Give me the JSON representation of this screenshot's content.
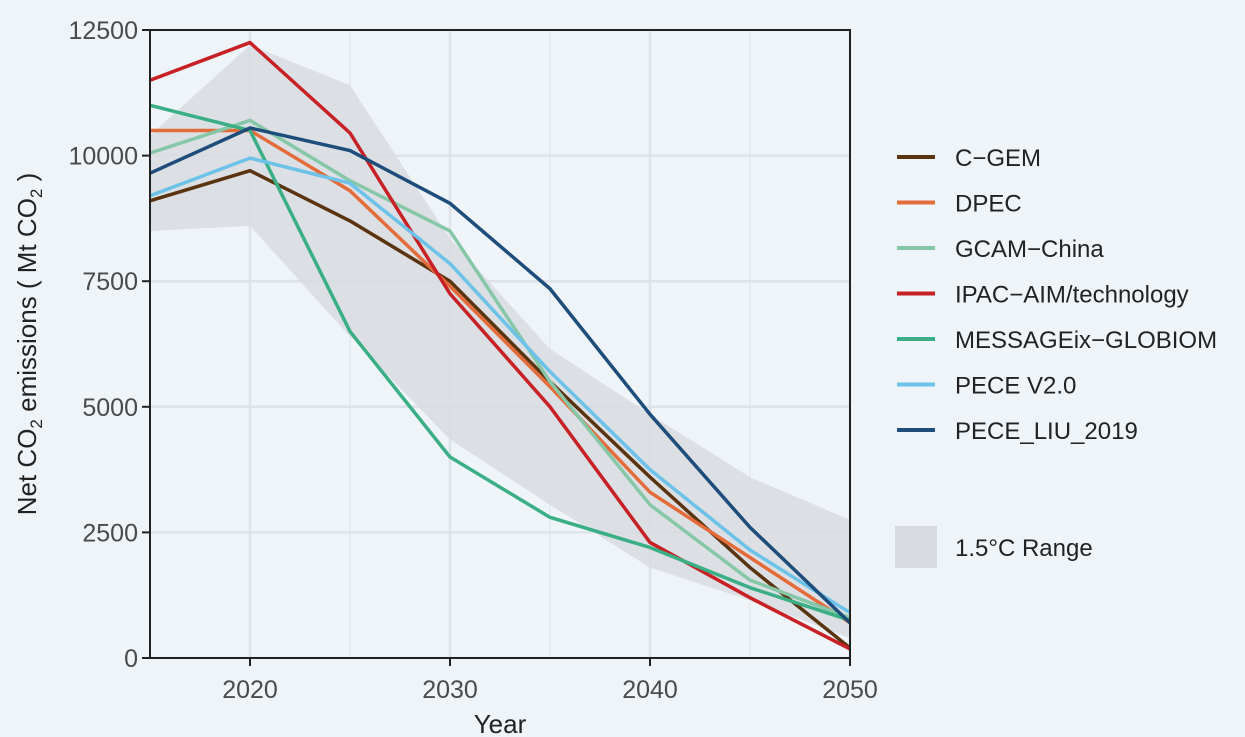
{
  "chart_data": {
    "type": "line",
    "title": "",
    "xlabel": "Year",
    "ylabel_parts": [
      "Net CO",
      "2",
      " emissions ( Mt CO",
      "2",
      " )"
    ],
    "xlim": [
      2015,
      2050
    ],
    "ylim": [
      0,
      12500
    ],
    "x_ticks": [
      2020,
      2030,
      2040,
      2050
    ],
    "y_ticks": [
      0,
      2500,
      5000,
      7500,
      10000,
      12500
    ],
    "x_tick_labels": [
      "2020",
      "2030",
      "2040",
      "2050"
    ],
    "y_tick_labels": [
      "0",
      "2500",
      "5000",
      "7500",
      "10000",
      "12500"
    ],
    "grid": true,
    "legend_position": "right",
    "x": [
      2015,
      2020,
      2025,
      2030,
      2035,
      2040,
      2045,
      2050
    ],
    "series": [
      {
        "name": "C−GEM",
        "color": "#5a3310",
        "values": [
          9100,
          9700,
          8700,
          7500,
          5500,
          3600,
          1800,
          200
        ]
      },
      {
        "name": "DPEC",
        "color": "#e46c3a",
        "values": [
          10500,
          10500,
          9300,
          7400,
          5400,
          3300,
          2000,
          700
        ]
      },
      {
        "name": "GCAM−China",
        "color": "#86c7a7",
        "values": [
          10050,
          10700,
          9500,
          8500,
          5500,
          3050,
          1550,
          800
        ]
      },
      {
        "name": "IPAC−AIM/technology",
        "color": "#c72025",
        "values": [
          11500,
          12250,
          10450,
          7250,
          5000,
          2300,
          1200,
          180
        ]
      },
      {
        "name": "MESSAGEix−GLOBIOM",
        "color": "#3aaf85",
        "values": [
          11000,
          10500,
          6500,
          4000,
          2800,
          2200,
          1400,
          750
        ]
      },
      {
        "name": "PECE V2.0",
        "color": "#6cc2e8",
        "values": [
          9200,
          9950,
          9450,
          7850,
          5700,
          3750,
          2150,
          900
        ]
      },
      {
        "name": "PECE_LIU_2019",
        "color": "#1e4d7b",
        "values": [
          9650,
          10550,
          10100,
          9050,
          7350,
          4850,
          2600,
          700
        ]
      }
    ],
    "range": {
      "name": "1.5°C Range",
      "color": "#d8dce0",
      "upper": [
        10400,
        12200,
        11400,
        8350,
        6150,
        4850,
        3600,
        2750
      ],
      "lower": [
        8500,
        8600,
        6400,
        4350,
        3050,
        1800,
        1150,
        400
      ]
    }
  }
}
